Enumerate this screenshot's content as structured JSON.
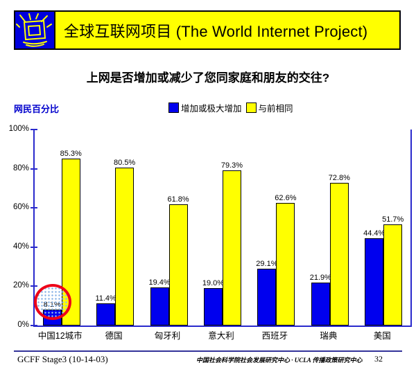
{
  "header": {
    "title": "全球互联网项目 (The World Internet Project)",
    "banner_color": "#ffff00",
    "logo_icon": "burst-monitor-icon",
    "logo_color": "#0000dd"
  },
  "question": "上网是否增加或减少了您同家庭和朋友的交往?",
  "chart": {
    "axis_caption": "网民百分比",
    "legend": [
      {
        "label": "增加或极大增加",
        "color": "#0000ee"
      },
      {
        "label": "与前相同",
        "color": "#ffff00"
      }
    ]
  },
  "chart_data": {
    "type": "bar",
    "categories": [
      "中国12城市",
      "德国",
      "匈牙利",
      "意大利",
      "西班牙",
      "瑞典",
      "美国"
    ],
    "series": [
      {
        "name": "增加或极大增加",
        "color": "#0000ee",
        "values": [
          8.1,
          11.4,
          19.4,
          19.0,
          29.1,
          21.9,
          44.4
        ],
        "labels": [
          "8.1%",
          "11.4%",
          "19.4%",
          "19.0%",
          "29.1%",
          "21.9%",
          "44.4%"
        ]
      },
      {
        "name": "与前相同",
        "color": "#ffff00",
        "values": [
          85.3,
          80.5,
          61.8,
          79.3,
          62.6,
          72.8,
          51.7
        ],
        "labels": [
          "85.3%",
          "80.5%",
          "61.8%",
          "79.3%",
          "62.6%",
          "72.8%",
          "51.7%"
        ]
      }
    ],
    "ylabel": "网民百分比",
    "yticks": [
      "100%",
      "80%",
      "60%",
      "40%",
      "20%",
      "0%"
    ],
    "ylim": [
      0,
      100
    ],
    "grid": false,
    "legend_position": "top",
    "annotation": {
      "type": "circle",
      "target_category": "中国12城市",
      "target_value": "8.1%",
      "color": "#ee0018"
    }
  },
  "footer": {
    "left": "GCFF Stage3 (10-14-03)",
    "center": "中国社会科学院社会发展研究中心 · UCLA 传播政策研究中心",
    "page": "32"
  }
}
